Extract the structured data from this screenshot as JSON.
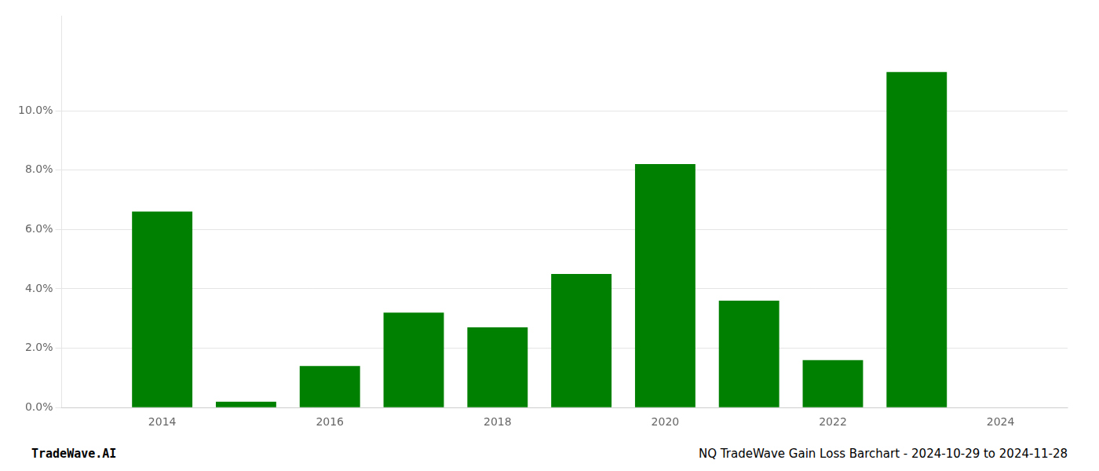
{
  "chart_data": {
    "type": "bar",
    "x": [
      2014,
      2015,
      2016,
      2017,
      2018,
      2019,
      2020,
      2021,
      2022,
      2023
    ],
    "values": [
      0.066,
      0.002,
      0.014,
      0.032,
      0.027,
      0.045,
      0.082,
      0.036,
      0.016,
      0.113
    ],
    "color": "#008000",
    "xlim": [
      2012.8,
      2024.8
    ],
    "xticks": [
      2014,
      2016,
      2018,
      2020,
      2022,
      2024
    ],
    "ylim": [
      0,
      0.132
    ],
    "yticks": [
      {
        "value": 0.0,
        "label": "0.0%"
      },
      {
        "value": 0.02,
        "label": "2.0%"
      },
      {
        "value": 0.04,
        "label": "4.0%"
      },
      {
        "value": 0.06,
        "label": "6.0%"
      },
      {
        "value": 0.08,
        "label": "8.0%"
      },
      {
        "value": 0.1,
        "label": "10.0%"
      }
    ],
    "grid": true,
    "annotations": [
      "TradeWave.AI",
      "NQ TradeWave Gain Loss Barchart - 2024-10-29 to 2024-11-28"
    ]
  }
}
